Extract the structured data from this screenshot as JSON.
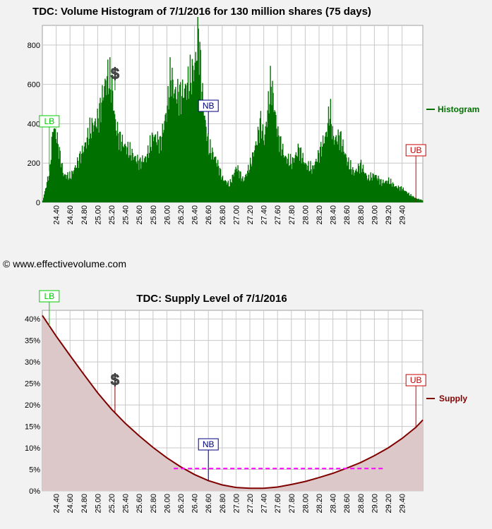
{
  "copyright": "© www.effectivevolume.com",
  "colors": {
    "histogram": "#007000",
    "supply": "#800000",
    "supply_fill": "#dcc8c8",
    "lb": "#00cc00",
    "nb": "#000080",
    "ub": "#cc0000",
    "dashed": "#ff00ff",
    "grid": "#c8c8c8"
  },
  "markers": {
    "lb": "LB",
    "nb": "NB",
    "ub": "UB",
    "dollar": "$",
    "lb_price": 24.3,
    "nb_price": 26.6,
    "ub_price": 29.6,
    "dollar_price": 25.25
  },
  "x_ticks": [
    "24.40",
    "24.60",
    "24.80",
    "25.00",
    "25.20",
    "25.40",
    "25.60",
    "25.80",
    "26.00",
    "26.20",
    "26.40",
    "26.60",
    "26.80",
    "27.00",
    "27.20",
    "27.40",
    "27.60",
    "27.80",
    "28.00",
    "28.20",
    "28.40",
    "28.60",
    "28.80",
    "29.00",
    "29.20",
    "29.40"
  ],
  "chart_data": [
    {
      "type": "bar",
      "title": "TDC: Volume Histogram of 7/1/2016 for 130 million shares (75 days)",
      "legend": "Histogram",
      "legend_position": "right",
      "xlim": [
        24.2,
        29.7
      ],
      "ylim": [
        0,
        900
      ],
      "y_ticks": [
        "0",
        "200",
        "400",
        "600",
        "800"
      ],
      "x": [
        24.2,
        24.3,
        24.35,
        24.4,
        24.5,
        24.6,
        24.7,
        24.8,
        24.9,
        25.0,
        25.1,
        25.15,
        25.2,
        25.25,
        25.3,
        25.4,
        25.5,
        25.6,
        25.7,
        25.8,
        25.9,
        26.0,
        26.05,
        26.1,
        26.2,
        26.3,
        26.4,
        26.45,
        26.5,
        26.55,
        26.6,
        26.7,
        26.8,
        26.9,
        27.0,
        27.1,
        27.2,
        27.3,
        27.35,
        27.4,
        27.5,
        27.6,
        27.7,
        27.8,
        27.9,
        28.0,
        28.1,
        28.2,
        28.3,
        28.35,
        28.4,
        28.5,
        28.6,
        28.7,
        28.8,
        28.9,
        29.0,
        29.1,
        29.2,
        29.3,
        29.4,
        29.5,
        29.6,
        29.7
      ],
      "values": [
        10,
        160,
        390,
        330,
        140,
        130,
        200,
        280,
        380,
        420,
        600,
        640,
        580,
        400,
        330,
        280,
        240,
        200,
        230,
        340,
        300,
        480,
        650,
        560,
        540,
        600,
        690,
        860,
        570,
        400,
        280,
        220,
        120,
        90,
        180,
        110,
        190,
        320,
        410,
        310,
        610,
        340,
        230,
        200,
        270,
        190,
        170,
        250,
        350,
        470,
        320,
        330,
        210,
        150,
        190,
        120,
        140,
        100,
        110,
        80,
        70,
        40,
        20,
        10
      ]
    },
    {
      "type": "area",
      "title": "TDC: Supply Level of 7/1/2016",
      "legend": "Supply",
      "legend_position": "right",
      "xlim": [
        24.2,
        29.7
      ],
      "ylim": [
        0,
        0.42
      ],
      "y_ticks": [
        "0%",
        "5%",
        "10%",
        "15%",
        "20%",
        "25%",
        "30%",
        "35%",
        "40%"
      ],
      "x": [
        24.2,
        24.4,
        24.6,
        24.8,
        25.0,
        25.2,
        25.4,
        25.6,
        25.8,
        26.0,
        26.2,
        26.4,
        26.6,
        26.8,
        27.0,
        27.2,
        27.4,
        27.6,
        27.8,
        28.0,
        28.2,
        28.4,
        28.6,
        28.8,
        29.0,
        29.2,
        29.4,
        29.6,
        29.7
      ],
      "values": [
        0.408,
        0.36,
        0.315,
        0.271,
        0.228,
        0.19,
        0.157,
        0.128,
        0.101,
        0.077,
        0.056,
        0.038,
        0.024,
        0.014,
        0.008,
        0.006,
        0.006,
        0.009,
        0.015,
        0.022,
        0.031,
        0.041,
        0.053,
        0.066,
        0.082,
        0.1,
        0.122,
        0.148,
        0.165
      ],
      "reference_line": {
        "y": 0.052,
        "x_range": [
          26.1,
          29.15
        ]
      }
    }
  ]
}
